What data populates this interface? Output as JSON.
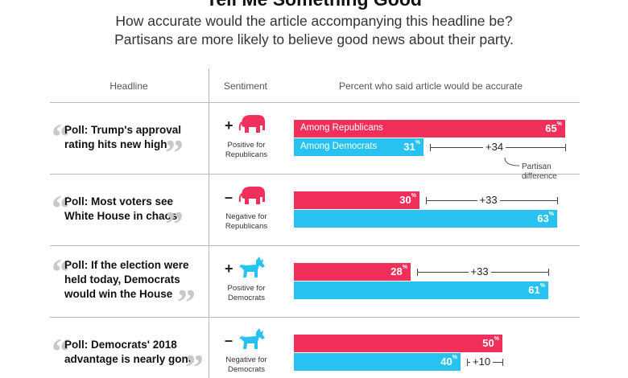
{
  "title": "Tell Me Something Good",
  "subtitle_line1": "How accurate would the article accompanying this headline be?",
  "subtitle_line2": "Partisans are more likely to believe good news about their party.",
  "columns": {
    "headline": "Headline",
    "sentiment": "Sentiment",
    "percent": "Percent who said article would be accurate"
  },
  "legend": {
    "republicans": "Among Republicans",
    "democrats": "Among Democrats"
  },
  "partisan_note_line1": "Partisan",
  "partisan_note_line2": "difference",
  "colors": {
    "republican": "#f0305a",
    "democrat": "#27c2f0"
  },
  "rows": [
    {
      "headline_lines": [
        "Poll: Trump's approval",
        "rating hits new high"
      ],
      "sign": "+",
      "icon": "elephant-icon",
      "sentiment_lines": [
        "Positive for",
        "Republicans"
      ],
      "rep_label": "65",
      "dem_label": "31",
      "diff_label": "+34"
    },
    {
      "headline_lines": [
        "Poll: Most voters see",
        "White House in chaos"
      ],
      "sign": "–",
      "icon": "elephant-icon",
      "sentiment_lines": [
        "Negative for",
        "Republicans"
      ],
      "rep_label": "30",
      "dem_label": "63",
      "diff_label": "+33"
    },
    {
      "headline_lines": [
        "Poll: If the election were",
        "held today, Democrats",
        "would win the House"
      ],
      "sign": "+",
      "icon": "donkey-icon",
      "sentiment_lines": [
        "Positive for",
        "Democrats"
      ],
      "rep_label": "28",
      "dem_label": "61",
      "diff_label": "+33"
    },
    {
      "headline_lines": [
        "Poll: Democrats' 2018",
        "advantage is nearly gone"
      ],
      "sign": "–",
      "icon": "donkey-icon",
      "sentiment_lines": [
        "Negative for",
        "Democrats"
      ],
      "rep_label": "50",
      "dem_label": "40",
      "diff_label": "+10"
    }
  ],
  "chart_data": {
    "type": "bar",
    "categories": [
      "Poll: Trump's approval rating hits new high",
      "Poll: Most voters see White House in chaos",
      "Poll: If the election were held today, Democrats would win the House",
      "Poll: Democrats' 2018 advantage is nearly gone"
    ],
    "series": [
      {
        "name": "Among Republicans",
        "values": [
          65,
          30,
          28,
          50
        ]
      },
      {
        "name": "Among Democrats",
        "values": [
          31,
          63,
          61,
          40
        ]
      }
    ],
    "partisan_difference": [
      34,
      33,
      33,
      10
    ],
    "title": "Tell Me Something Good",
    "xlabel": "Percent who said article would be accurate",
    "ylabel": "",
    "xlim": [
      0,
      100
    ],
    "orientation": "horizontal",
    "grid": false
  }
}
